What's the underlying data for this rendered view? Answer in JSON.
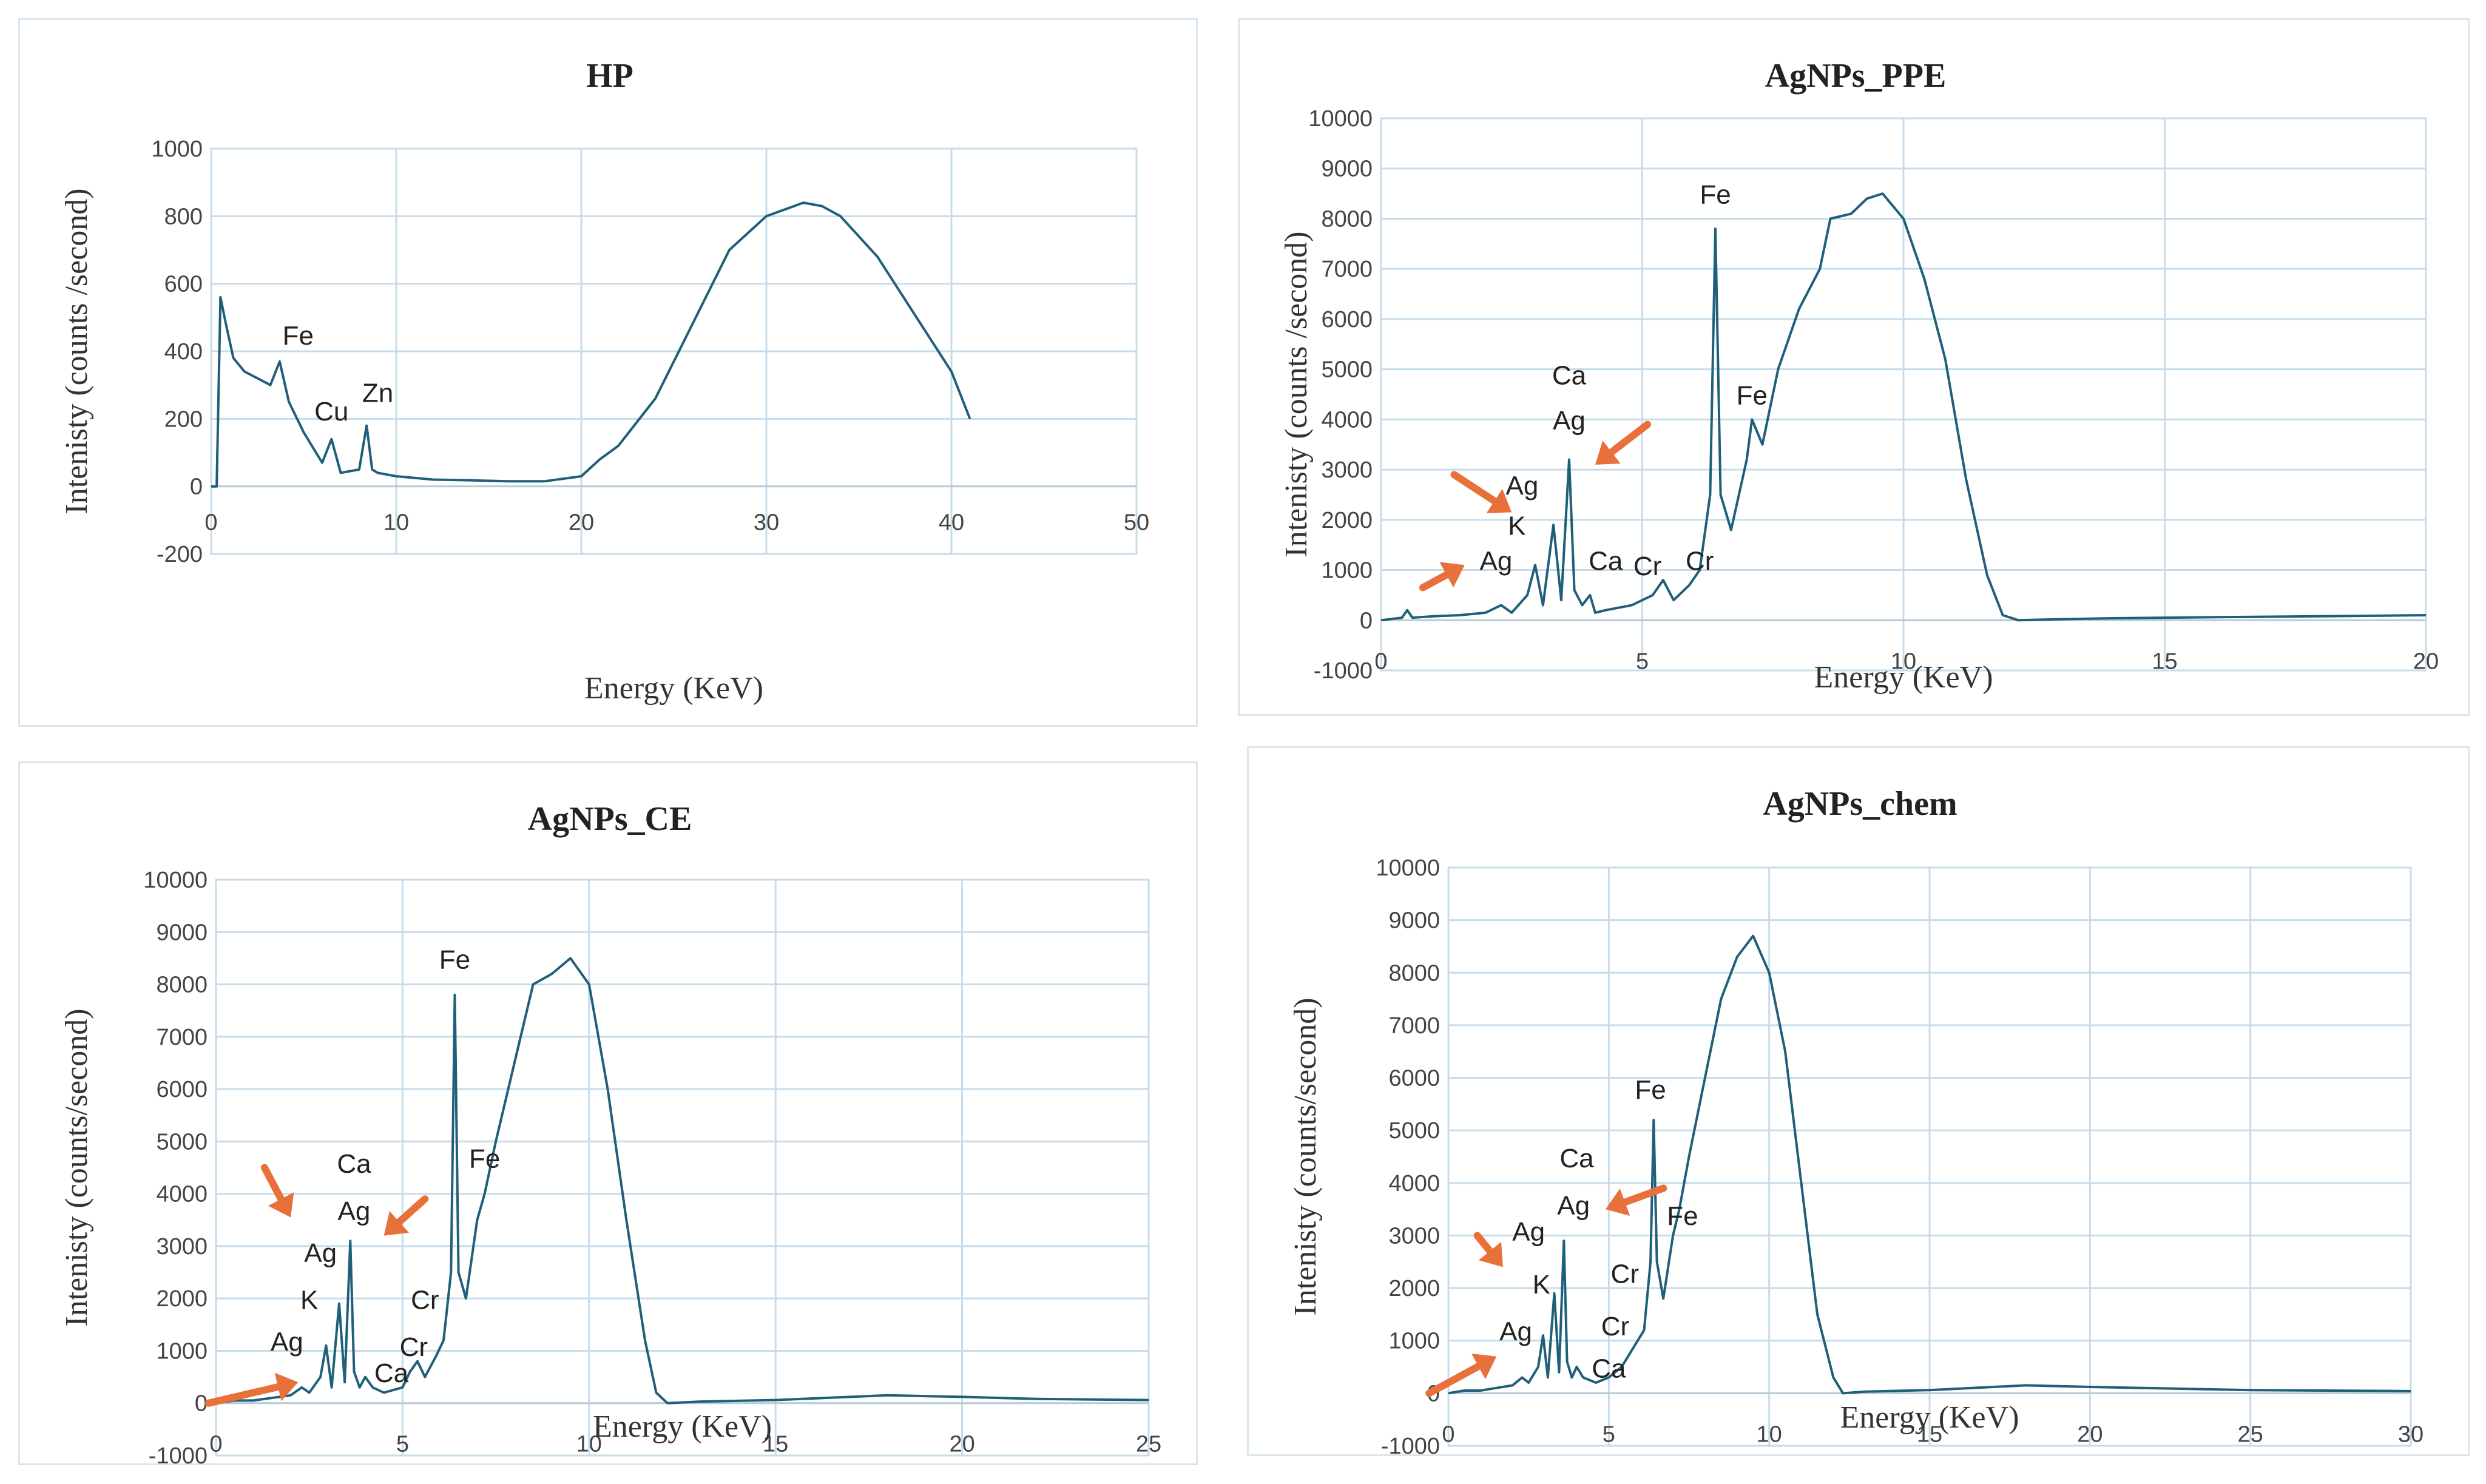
{
  "colors": {
    "line": "#1f5f7a",
    "arrow": "#e8703a",
    "grid": "#c7dcea"
  },
  "chart_data": [
    {
      "id": "hp",
      "type": "line",
      "title": "HP",
      "xlabel": "Energy (KeV)",
      "ylabel": "Intenisty (counts /second)",
      "xlim": [
        0,
        50
      ],
      "ylim": [
        -200,
        1000
      ],
      "xticks": [
        0,
        10,
        20,
        30,
        40,
        50
      ],
      "yticks": [
        -200,
        0,
        200,
        400,
        600,
        800,
        1000
      ],
      "xtick_labels": [
        "0",
        "10",
        "20",
        "30",
        "40",
        "50"
      ],
      "ytick_labels": [
        "-200",
        "0",
        "200",
        "400",
        "600",
        "800",
        "1000"
      ],
      "series": [
        {
          "name": "HP",
          "x": [
            0,
            0.3,
            0.5,
            0.8,
            1.2,
            1.8,
            2.5,
            3.2,
            3.7,
            4.2,
            5.0,
            6.0,
            6.5,
            7.0,
            8.0,
            8.4,
            8.7,
            9.0,
            10.0,
            11.0,
            12.0,
            14.0,
            16.0,
            18.0,
            20.0,
            21.0,
            22.0,
            24.0,
            26.0,
            28.0,
            30.0,
            32.0,
            33.0,
            34.0,
            36.0,
            38.0,
            40.0,
            41.0
          ],
          "y": [
            0,
            0,
            560,
            480,
            380,
            340,
            320,
            300,
            370,
            250,
            160,
            70,
            140,
            40,
            50,
            180,
            50,
            40,
            30,
            25,
            20,
            18,
            15,
            15,
            30,
            80,
            120,
            260,
            480,
            700,
            800,
            840,
            830,
            800,
            680,
            510,
            340,
            200
          ]
        }
      ],
      "annotations": [
        {
          "label": "Fe",
          "x": 4.7,
          "y": 420
        },
        {
          "label": "Cu",
          "x": 6.5,
          "y": 195
        },
        {
          "label": "Zn",
          "x": 9.0,
          "y": 250
        }
      ],
      "arrows": []
    },
    {
      "id": "ppe",
      "type": "line",
      "title": "AgNPs_PPE",
      "xlabel": "Energy (KeV)",
      "ylabel": "Intenisty (counts /second)",
      "xlim": [
        0,
        20
      ],
      "ylim": [
        -1000,
        10000
      ],
      "xticks": [
        0,
        5,
        10,
        15,
        20
      ],
      "yticks": [
        -1000,
        0,
        1000,
        2000,
        3000,
        4000,
        5000,
        6000,
        7000,
        8000,
        9000,
        10000
      ],
      "xtick_labels": [
        "0",
        "5",
        "10",
        "15",
        "20"
      ],
      "ytick_labels": [
        "-1000",
        "0",
        "1000",
        "2000",
        "3000",
        "4000",
        "5000",
        "6000",
        "7000",
        "8000",
        "9000",
        "10000"
      ],
      "series": [
        {
          "name": "AgNPs_PPE",
          "x": [
            0,
            0.4,
            0.5,
            0.6,
            1.0,
            1.5,
            2.0,
            2.3,
            2.5,
            2.8,
            2.95,
            3.1,
            3.3,
            3.45,
            3.6,
            3.7,
            3.85,
            4.0,
            4.1,
            4.3,
            4.8,
            5.2,
            5.4,
            5.6,
            5.9,
            6.1,
            6.3,
            6.4,
            6.5,
            6.7,
            7.0,
            7.1,
            7.3,
            7.6,
            8.0,
            8.4,
            8.6,
            9.0,
            9.3,
            9.6,
            10.0,
            10.4,
            10.8,
            11.2,
            11.6,
            11.9,
            12.2,
            13.0,
            14.0,
            16.0,
            18.0,
            20.0
          ],
          "y": [
            0,
            50,
            200,
            50,
            80,
            100,
            150,
            300,
            150,
            500,
            1100,
            300,
            1900,
            400,
            3200,
            600,
            300,
            500,
            150,
            200,
            300,
            500,
            800,
            400,
            700,
            1000,
            2500,
            7800,
            2500,
            1800,
            3200,
            4000,
            3500,
            5000,
            6200,
            7000,
            8000,
            8100,
            8400,
            8500,
            8000,
            6800,
            5200,
            2800,
            900,
            100,
            0,
            20,
            40,
            60,
            80,
            100
          ]
        }
      ],
      "annotations": [
        {
          "label": "Fe",
          "x": 6.4,
          "y": 8300
        },
        {
          "label": "Ca",
          "x": 3.6,
          "y": 4700
        },
        {
          "label": "Ag",
          "x": 3.6,
          "y": 3800
        },
        {
          "label": "Ag",
          "x": 2.7,
          "y": 2500
        },
        {
          "label": "K",
          "x": 2.6,
          "y": 1700
        },
        {
          "label": "Ag",
          "x": 2.2,
          "y": 1000
        },
        {
          "label": "Ca",
          "x": 4.3,
          "y": 1000
        },
        {
          "label": "Cr",
          "x": 5.1,
          "y": 900
        },
        {
          "label": "Cr",
          "x": 6.1,
          "y": 1000
        },
        {
          "label": "Fe",
          "x": 7.1,
          "y": 4300
        }
      ],
      "arrows": [
        {
          "from": [
            1.4,
            2900
          ],
          "to": [
            2.5,
            2150
          ]
        },
        {
          "from": [
            0.8,
            650
          ],
          "to": [
            1.6,
            1100
          ]
        },
        {
          "from": [
            5.1,
            3900
          ],
          "to": [
            4.1,
            3100
          ]
        }
      ]
    },
    {
      "id": "ce",
      "type": "line",
      "title": "AgNPs_CE",
      "xlabel": "Energy (KeV)",
      "ylabel": "Intenisty (counts/second)",
      "xlim": [
        0,
        25
      ],
      "ylim": [
        -1000,
        10000
      ],
      "xticks": [
        0,
        5,
        10,
        15,
        20,
        25
      ],
      "yticks": [
        -1000,
        0,
        1000,
        2000,
        3000,
        4000,
        5000,
        6000,
        7000,
        8000,
        9000,
        10000
      ],
      "xtick_labels": [
        "0",
        "5",
        "10",
        "15",
        "20",
        "25"
      ],
      "ytick_labels": [
        "-1000",
        "0",
        "1000",
        "2000",
        "3000",
        "4000",
        "5000",
        "6000",
        "7000",
        "8000",
        "9000",
        "10000"
      ],
      "series": [
        {
          "name": "AgNPs_CE",
          "x": [
            0,
            0.5,
            1.0,
            1.5,
            2.0,
            2.3,
            2.5,
            2.8,
            2.95,
            3.1,
            3.3,
            3.45,
            3.6,
            3.7,
            3.85,
            4.0,
            4.2,
            4.5,
            5.0,
            5.2,
            5.4,
            5.6,
            5.9,
            6.1,
            6.3,
            6.4,
            6.5,
            6.7,
            7.0,
            7.2,
            7.5,
            8.0,
            8.5,
            9.0,
            9.5,
            10.0,
            10.5,
            11.0,
            11.5,
            11.8,
            12.1,
            13.0,
            15.0,
            18.0,
            20.0,
            22.0,
            25.0
          ],
          "y": [
            0,
            50,
            50,
            100,
            150,
            300,
            200,
            500,
            1100,
            300,
            1900,
            400,
            3100,
            600,
            300,
            500,
            300,
            200,
            300,
            600,
            800,
            500,
            900,
            1200,
            2500,
            7800,
            2500,
            2000,
            3500,
            4000,
            5000,
            6500,
            8000,
            8200,
            8500,
            8000,
            6000,
            3500,
            1200,
            200,
            0,
            30,
            60,
            150,
            120,
            80,
            60
          ]
        }
      ],
      "annotations": [
        {
          "label": "Fe",
          "x": 6.4,
          "y": 8300
        },
        {
          "label": "Ca",
          "x": 3.7,
          "y": 4400
        },
        {
          "label": "Ag",
          "x": 3.7,
          "y": 3500
        },
        {
          "label": "Ag",
          "x": 2.8,
          "y": 2700
        },
        {
          "label": "K",
          "x": 2.5,
          "y": 1800
        },
        {
          "label": "Ag",
          "x": 1.9,
          "y": 1000
        },
        {
          "label": "Cr",
          "x": 5.6,
          "y": 1800
        },
        {
          "label": "Cr",
          "x": 5.3,
          "y": 900
        },
        {
          "label": "Ca",
          "x": 4.7,
          "y": 400
        },
        {
          "label": "Fe",
          "x": 7.2,
          "y": 4500
        }
      ],
      "arrows": [
        {
          "from": [
            1.3,
            4500
          ],
          "to": [
            2.0,
            3550
          ]
        },
        {
          "from": [
            5.6,
            3900
          ],
          "to": [
            4.5,
            3200
          ]
        },
        {
          "from": [
            -0.2,
            0
          ],
          "to": [
            2.2,
            400
          ]
        }
      ]
    },
    {
      "id": "chem",
      "type": "line",
      "title": "AgNPs_chem",
      "xlabel": "Energy (KeV)",
      "ylabel": "Intenisty (counts/second)",
      "xlim": [
        0,
        30
      ],
      "ylim": [
        -1000,
        10000
      ],
      "xticks": [
        0,
        5,
        10,
        15,
        20,
        25,
        30
      ],
      "yticks": [
        -1000,
        0,
        1000,
        2000,
        3000,
        4000,
        5000,
        6000,
        7000,
        8000,
        9000,
        10000
      ],
      "xtick_labels": [
        "0",
        "5",
        "10",
        "15",
        "20",
        "25",
        "30"
      ],
      "ytick_labels": [
        "-1000",
        "0",
        "1000",
        "2000",
        "3000",
        "4000",
        "5000",
        "6000",
        "7000",
        "8000",
        "9000",
        "10000"
      ],
      "series": [
        {
          "name": "AgNPs_chem",
          "x": [
            0,
            0.5,
            1.0,
            1.5,
            2.0,
            2.3,
            2.5,
            2.8,
            2.95,
            3.1,
            3.3,
            3.45,
            3.6,
            3.7,
            3.85,
            4.0,
            4.2,
            4.6,
            5.0,
            5.4,
            5.8,
            6.1,
            6.3,
            6.4,
            6.5,
            6.7,
            7.0,
            7.2,
            7.5,
            8.0,
            8.5,
            9.0,
            9.5,
            10.0,
            10.5,
            11.0,
            11.5,
            12.0,
            12.3,
            13.0,
            15.0,
            18.0,
            20.0,
            25.0,
            30.0
          ],
          "y": [
            0,
            50,
            50,
            100,
            150,
            300,
            200,
            500,
            1100,
            300,
            1900,
            400,
            2900,
            600,
            300,
            500,
            300,
            200,
            300,
            500,
            900,
            1200,
            2500,
            5200,
            2500,
            1800,
            3000,
            3500,
            4500,
            6000,
            7500,
            8300,
            8700,
            8000,
            6500,
            4000,
            1500,
            300,
            0,
            30,
            60,
            150,
            120,
            60,
            40
          ]
        }
      ],
      "annotations": [
        {
          "label": "Fe",
          "x": 6.3,
          "y": 5600
        },
        {
          "label": "Ca",
          "x": 4.0,
          "y": 4300
        },
        {
          "label": "Ag",
          "x": 3.9,
          "y": 3400
        },
        {
          "label": "Ag",
          "x": 2.5,
          "y": 2900
        },
        {
          "label": "K",
          "x": 2.9,
          "y": 1900
        },
        {
          "label": "Ag",
          "x": 2.1,
          "y": 1000
        },
        {
          "label": "Cr",
          "x": 5.5,
          "y": 2100
        },
        {
          "label": "Cr",
          "x": 5.2,
          "y": 1100
        },
        {
          "label": "Ca",
          "x": 5.0,
          "y": 300
        },
        {
          "label": "Fe",
          "x": 7.3,
          "y": 3200
        }
      ],
      "arrows": [
        {
          "from": [
            0.9,
            3000
          ],
          "to": [
            1.7,
            2400
          ]
        },
        {
          "from": [
            6.7,
            3900
          ],
          "to": [
            4.9,
            3500
          ]
        },
        {
          "from": [
            -0.6,
            0
          ],
          "to": [
            1.5,
            700
          ]
        }
      ]
    }
  ]
}
